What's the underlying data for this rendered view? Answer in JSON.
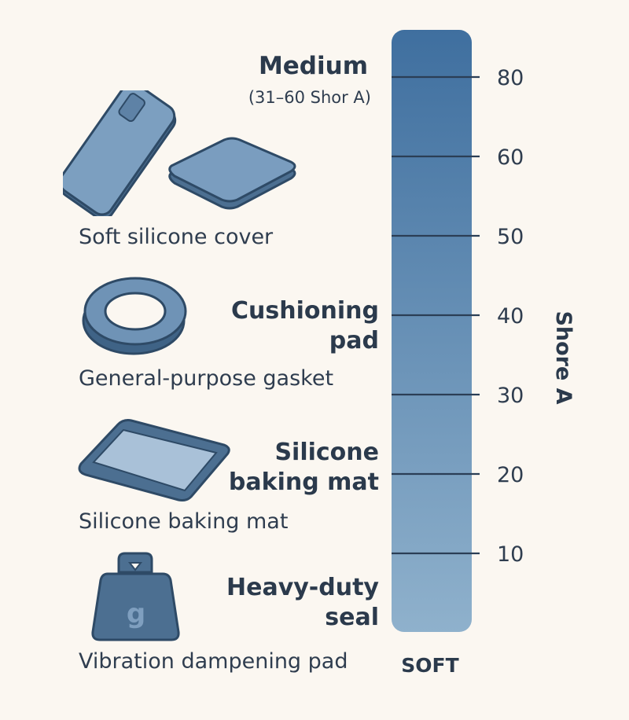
{
  "header": {
    "range_title": "Medium",
    "range_subtitle": "(31–60 Shor A)"
  },
  "items": [
    {
      "label": "Soft silicone cover",
      "icon": "phone-case-and-pad-icon"
    },
    {
      "label": "General-purpose gasket",
      "icon": "ring-gasket-icon"
    },
    {
      "label": "Silicone baking mat",
      "icon": "baking-mat-icon"
    },
    {
      "label": "Vibration dampening pad",
      "icon": "weight-icon",
      "icon_text": "g"
    }
  ],
  "scale_labels": [
    {
      "text": "Cushioning\npad"
    },
    {
      "text": "Silicone\nbaking mat"
    },
    {
      "text": "Heavy-duty\nseal"
    }
  ],
  "scale": {
    "axis_title": "Shore A",
    "bottom_label": "SOFT",
    "ticks": [
      80,
      60,
      50,
      40,
      30,
      20,
      10
    ],
    "bar_color_top": "#3f6f9f",
    "bar_color_bottom": "#8fb1cc",
    "tick_color": "#2b3e55"
  }
}
